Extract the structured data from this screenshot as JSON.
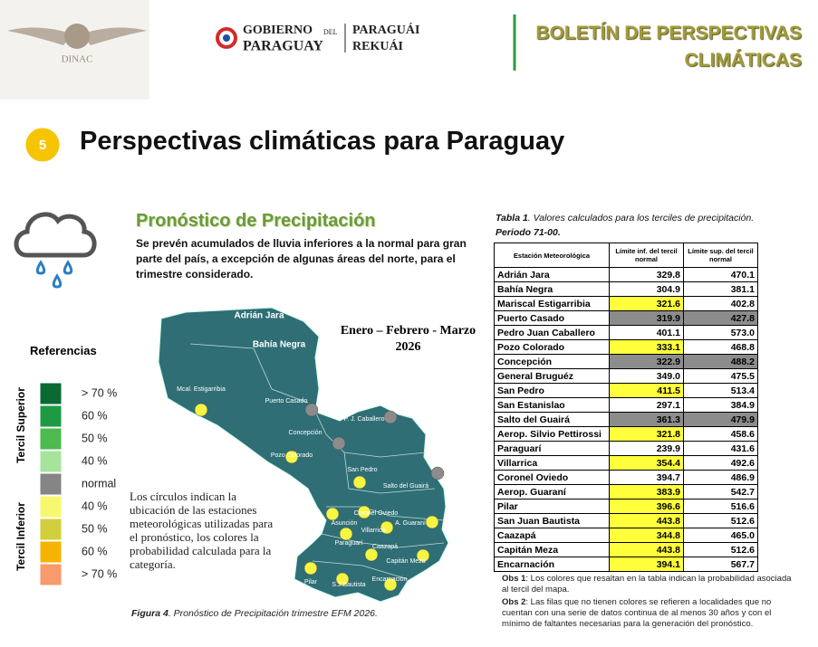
{
  "header": {
    "logo_text": "DINAC",
    "gov_line1": "GOBIERNO",
    "gov_small": "DEL",
    "gov_line2": "PARAGUAY",
    "motto1": "PARAGUÁI",
    "motto2": "REKUÁI",
    "title_line1": "BOLETÍN DE PERSPECTIVAS",
    "title_line2": "CLIMÁTICAS"
  },
  "section": {
    "number": "5",
    "title": "Perspectivas climáticas para Paraguay"
  },
  "forecast": {
    "title": "Pronóstico de Precipitación",
    "description": "Se prevén acumulados de lluvia inferiores a la normal para gran parte del país, a excepción de algunas áreas del norte, para el trimestre considerado.",
    "period": "Enero – Febrero - Marzo",
    "year": "2026",
    "note": "Los círculos indican la ubicación de las estaciones meteorológicas utilizadas para el pronóstico, los colores la probabilidad calculada para la categoría.",
    "caption_label": "Figura 4",
    "caption_text": ". Pronóstico de Precipitación trimestre EFM 2026."
  },
  "map": {
    "stations": [
      {
        "label": "Adrián Jara",
        "color": null
      },
      {
        "label": "Bahía Negra",
        "color": null
      },
      {
        "label": "Mcal. Estigarribia",
        "color": "#f5f542"
      },
      {
        "label": "Puerto Casado",
        "color": "#8c8c8c"
      },
      {
        "label": "P. J. Caballero",
        "color": "#8c8c8c"
      },
      {
        "label": "Concepción",
        "color": "#8c8c8c"
      },
      {
        "label": "Pozo Colorado",
        "color": "#f5f542"
      },
      {
        "label": "Salto del Guairá",
        "color": "#8c8c8c"
      },
      {
        "label": "San Pedro",
        "color": "#f5f542"
      },
      {
        "label": "Asunción",
        "color": "#f5f542"
      },
      {
        "label": "Coronel Oviedo",
        "color": "#f5f542"
      },
      {
        "label": "A. Guaraní",
        "color": "#f5f542"
      },
      {
        "label": "Villarrica",
        "color": "#f5f542"
      },
      {
        "label": "Paraguarí",
        "color": "#f5f542"
      },
      {
        "label": "Caazapá",
        "color": "#f5f542"
      },
      {
        "label": "Capitán Meza",
        "color": "#f5f542"
      },
      {
        "label": "Pilar",
        "color": "#f5f542"
      },
      {
        "label": "S.J.Bautista",
        "color": "#f5f542"
      },
      {
        "label": "Encarnación",
        "color": "#f5f542"
      }
    ]
  },
  "legend": {
    "title": "Referencias",
    "group_upper": "Tercil Superior",
    "group_lower": "Tercil Inferior",
    "items": [
      {
        "label": "> 70 %",
        "color": "#0b6a34"
      },
      {
        "label": "60 %",
        "color": "#1f9a44"
      },
      {
        "label": "50 %",
        "color": "#4cba4e"
      },
      {
        "label": "40 %",
        "color": "#a6e49c"
      },
      {
        "label": "normal",
        "color": "#858585"
      },
      {
        "label": "40  %",
        "color": "#f8f870"
      },
      {
        "label": "50  %",
        "color": "#d2cf3c"
      },
      {
        "label": "60 %",
        "color": "#f6b400"
      },
      {
        "label": "> 70 %",
        "color": "#f79a6c"
      }
    ]
  },
  "table": {
    "caption_label": "Tabla 1",
    "caption_text": ". Valores calculados para los terciles de precipitación.",
    "caption_period": "Periodo 71-00.",
    "headers": [
      "Estación Meteorológica",
      "Límite inf. del tercil normal",
      "Límite sup. del tercil normal"
    ],
    "rows": [
      [
        "Adrián Jara",
        "329.8",
        "470.1"
      ],
      [
        "Bahía Negra",
        "304.9",
        "381.1"
      ],
      [
        "Mariscal Estigarribia",
        "321.6",
        "402.8"
      ],
      [
        "Puerto Casado",
        "319.9",
        "427.8"
      ],
      [
        "Pedro Juan Caballero",
        "401.1",
        "573.0"
      ],
      [
        "Pozo Colorado",
        "333.1",
        "468.8"
      ],
      [
        "Concepción",
        "322.9",
        "488.2"
      ],
      [
        "General Bruguéz",
        "349.0",
        "475.5"
      ],
      [
        "San Pedro",
        "411.5",
        "513.4"
      ],
      [
        "San Estanislao",
        "297.1",
        "384.9"
      ],
      [
        "Salto del Guairá",
        "361.3",
        "479.9"
      ],
      [
        "Aerop. Silvio Pettirossi",
        "321.8",
        "458.6"
      ],
      [
        "Paraguarí",
        "239.9",
        "431.6"
      ],
      [
        "Villarrica",
        "354.4",
        "492.6"
      ],
      [
        "Coronel Oviedo",
        "394.7",
        "486.9"
      ],
      [
        "Aerop. Guaraní",
        "383.9",
        "542.7"
      ],
      [
        "Pilar",
        "396.6",
        "516.6"
      ],
      [
        "San Juan Bautista",
        "443.8",
        "512.6"
      ],
      [
        "Caazapá",
        "344.8",
        "465.0"
      ],
      [
        "Capitán Meza",
        "443.8",
        "512.6"
      ],
      [
        "Encarnación",
        "394.1",
        "567.7"
      ]
    ],
    "cell_colors": [
      [
        null,
        null
      ],
      [
        null,
        null
      ],
      [
        "#ffff3c",
        null
      ],
      [
        "#8c8c8c",
        "#8c8c8c"
      ],
      [
        null,
        null
      ],
      [
        "#ffff3c",
        null
      ],
      [
        "#8c8c8c",
        "#8c8c8c"
      ],
      [
        null,
        null
      ],
      [
        "#ffff3c",
        null
      ],
      [
        null,
        null
      ],
      [
        "#8c8c8c",
        "#8c8c8c"
      ],
      [
        "#ffff3c",
        null
      ],
      [
        null,
        null
      ],
      [
        "#ffff3c",
        null
      ],
      [
        null,
        null
      ],
      [
        "#ffff3c",
        null
      ],
      [
        "#ffff3c",
        null
      ],
      [
        "#ffff3c",
        null
      ],
      [
        "#ffff3c",
        null
      ],
      [
        "#ffff3c",
        null
      ],
      [
        "#ffff3c",
        null
      ]
    ]
  },
  "notes": [
    {
      "label": "Obs 1",
      "text": ": Los colores que resaltan en la tabla indican la probabilidad asociada al tercil del mapa."
    },
    {
      "label": "Obs 2",
      "text": ": Las filas que no tienen colores se refieren a localidades que no cuentan con una serie de datos continua de al menos 30 años y con el mínimo de faltantes necesarias para la generación del pronóstico."
    }
  ]
}
